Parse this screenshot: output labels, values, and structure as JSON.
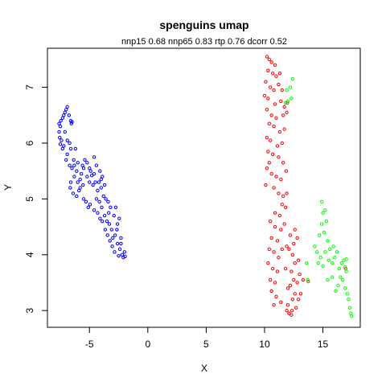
{
  "chart_data": {
    "type": "scatter",
    "title": "spenguins umap",
    "subtitle": "nnp15 0.68 nnp65 0.83 rtp 0.76 dcorr 0.52",
    "xlabel": "X",
    "ylabel": "Y",
    "xlim": [
      -8.6,
      18.2
    ],
    "ylim": [
      2.7,
      7.7
    ],
    "x_ticks": [
      -5,
      0,
      5,
      10,
      15
    ],
    "y_ticks": [
      3,
      4,
      5,
      6,
      7
    ],
    "grid": false,
    "legend": "none",
    "marker": "open-circle",
    "series": [
      {
        "color": "#0000FF",
        "points": [
          [
            -7.6,
            6.35
          ],
          [
            -7.5,
            6.3
          ],
          [
            -7.6,
            6.2
          ],
          [
            -7.55,
            6.1
          ],
          [
            -7.4,
            6.05
          ],
          [
            -7.5,
            5.98
          ],
          [
            -7.3,
            5.9
          ],
          [
            -7.2,
            5.95
          ],
          [
            -7.45,
            6.4
          ],
          [
            -7.3,
            6.45
          ],
          [
            -7.2,
            6.5
          ],
          [
            -7.1,
            6.55
          ],
          [
            -7.0,
            6.6
          ],
          [
            -6.9,
            6.65
          ],
          [
            -6.75,
            6.5
          ],
          [
            -6.6,
            6.4
          ],
          [
            -6.55,
            6.35
          ],
          [
            -6.5,
            6.38
          ],
          [
            -7.1,
            6.2
          ],
          [
            -6.9,
            6.05
          ],
          [
            -6.7,
            6.0
          ],
          [
            -6.6,
            5.9
          ],
          [
            -6.9,
            5.8
          ],
          [
            -7.0,
            5.7
          ],
          [
            -6.7,
            5.6
          ],
          [
            -6.5,
            5.55
          ],
          [
            -6.3,
            5.6
          ],
          [
            -6.1,
            5.5
          ],
          [
            -6.3,
            5.4
          ],
          [
            -6.0,
            5.3
          ],
          [
            -5.8,
            5.35
          ],
          [
            -5.7,
            5.45
          ],
          [
            -5.5,
            5.55
          ],
          [
            -5.6,
            5.6
          ],
          [
            -5.4,
            5.7
          ],
          [
            -5.2,
            5.65
          ],
          [
            -5.0,
            5.55
          ],
          [
            -4.9,
            5.5
          ],
          [
            -4.8,
            5.42
          ],
          [
            -4.6,
            5.45
          ],
          [
            -5.2,
            5.4
          ],
          [
            -5.0,
            5.3
          ],
          [
            -4.7,
            5.25
          ],
          [
            -4.5,
            5.3
          ],
          [
            -4.3,
            5.15
          ],
          [
            -4.0,
            5.2
          ],
          [
            -3.8,
            5.05
          ],
          [
            -3.6,
            5.0
          ],
          [
            -6.2,
            5.9
          ],
          [
            -6.35,
            5.7
          ],
          [
            -6.6,
            5.3
          ],
          [
            -6.65,
            5.2
          ],
          [
            -6.4,
            5.1
          ],
          [
            -6.1,
            5.05
          ],
          [
            -5.9,
            5.15
          ],
          [
            -5.5,
            5.0
          ],
          [
            -5.3,
            4.95
          ],
          [
            -5.1,
            4.85
          ],
          [
            -4.95,
            4.9
          ],
          [
            -4.6,
            4.8
          ],
          [
            -4.3,
            4.75
          ],
          [
            -4.1,
            4.65
          ],
          [
            -3.9,
            4.6
          ],
          [
            -3.7,
            4.7
          ],
          [
            -3.5,
            4.6
          ],
          [
            -3.3,
            4.55
          ],
          [
            -3.1,
            4.45
          ],
          [
            -3.0,
            4.3
          ],
          [
            -2.8,
            4.35
          ],
          [
            -2.6,
            4.2
          ],
          [
            -2.4,
            4.1
          ],
          [
            -2.3,
            4.2
          ],
          [
            -2.2,
            4.0
          ],
          [
            -2.1,
            3.95
          ],
          [
            -2.0,
            4.05
          ],
          [
            -1.95,
            3.97
          ],
          [
            -2.3,
            4.3
          ],
          [
            -2.6,
            4.55
          ],
          [
            -2.9,
            4.7
          ],
          [
            -3.2,
            4.85
          ],
          [
            -3.4,
            4.95
          ],
          [
            -3.7,
            5.25
          ],
          [
            -4.0,
            5.35
          ],
          [
            -4.2,
            5.3
          ],
          [
            -4.4,
            5.6
          ],
          [
            -4.6,
            5.75
          ],
          [
            -4.1,
            5.5
          ],
          [
            -3.9,
            5.4
          ],
          [
            -3.25,
            4.25
          ],
          [
            -3.05,
            4.15
          ],
          [
            -2.85,
            4.05
          ],
          [
            -2.65,
            4.45
          ],
          [
            -2.45,
            4.65
          ],
          [
            -2.75,
            4.85
          ],
          [
            -3.45,
            4.35
          ],
          [
            -3.65,
            4.45
          ],
          [
            -5.8,
            5.2
          ],
          [
            -6.0,
            5.65
          ],
          [
            -5.55,
            5.25
          ],
          [
            -4.15,
            4.95
          ],
          [
            -4.4,
            5.0
          ],
          [
            -3.95,
            4.85
          ],
          [
            -3.35,
            4.75
          ],
          [
            -2.5,
            3.98
          ]
        ]
      },
      {
        "color": "#FF0000",
        "points": [
          [
            10.2,
            7.55
          ],
          [
            10.4,
            7.5
          ],
          [
            10.6,
            7.45
          ],
          [
            10.9,
            7.4
          ],
          [
            10.3,
            7.3
          ],
          [
            10.7,
            7.25
          ],
          [
            11.0,
            7.2
          ],
          [
            11.3,
            7.25
          ],
          [
            10.1,
            7.1
          ],
          [
            10.5,
            7.0
          ],
          [
            10.8,
            6.95
          ],
          [
            11.2,
            7.05
          ],
          [
            11.5,
            6.95
          ],
          [
            10.0,
            6.85
          ],
          [
            10.3,
            6.8
          ],
          [
            10.9,
            6.7
          ],
          [
            11.4,
            6.75
          ],
          [
            11.7,
            6.65
          ],
          [
            10.2,
            6.6
          ],
          [
            10.6,
            6.5
          ],
          [
            11.0,
            6.45
          ],
          [
            11.6,
            6.5
          ],
          [
            11.9,
            6.55
          ],
          [
            10.4,
            6.35
          ],
          [
            10.8,
            6.3
          ],
          [
            11.3,
            6.2
          ],
          [
            11.7,
            6.25
          ],
          [
            10.2,
            6.1
          ],
          [
            10.5,
            6.05
          ],
          [
            11.1,
            5.95
          ],
          [
            11.5,
            6.0
          ],
          [
            10.3,
            5.85
          ],
          [
            10.7,
            5.8
          ],
          [
            11.2,
            5.75
          ],
          [
            11.6,
            5.65
          ],
          [
            10.2,
            5.55
          ],
          [
            10.6,
            5.45
          ],
          [
            11.0,
            5.4
          ],
          [
            11.4,
            5.35
          ],
          [
            10.8,
            5.2
          ],
          [
            11.2,
            5.1
          ],
          [
            11.6,
            5.05
          ],
          [
            11.9,
            5.1
          ],
          [
            11.5,
            4.9
          ],
          [
            11.8,
            4.85
          ],
          [
            10.9,
            4.75
          ],
          [
            11.3,
            4.7
          ],
          [
            10.5,
            4.6
          ],
          [
            10.9,
            4.5
          ],
          [
            11.4,
            4.45
          ],
          [
            10.6,
            4.3
          ],
          [
            11.1,
            4.25
          ],
          [
            10.4,
            4.1
          ],
          [
            10.8,
            4.05
          ],
          [
            11.2,
            3.95
          ],
          [
            10.3,
            3.85
          ],
          [
            10.7,
            3.75
          ],
          [
            11.1,
            3.7
          ],
          [
            10.5,
            3.55
          ],
          [
            10.9,
            3.5
          ],
          [
            10.6,
            3.35
          ],
          [
            11.0,
            3.25
          ],
          [
            11.4,
            3.15
          ],
          [
            10.8,
            3.1
          ],
          [
            11.9,
            3.0
          ],
          [
            12.1,
            2.95
          ],
          [
            12.3,
            2.92
          ],
          [
            12.0,
            3.1
          ],
          [
            12.4,
            3.2
          ],
          [
            12.6,
            3.3
          ],
          [
            12.9,
            3.2
          ],
          [
            13.1,
            3.3
          ],
          [
            12.2,
            3.45
          ],
          [
            12.5,
            3.55
          ],
          [
            12.8,
            3.5
          ],
          [
            13.0,
            3.65
          ],
          [
            12.3,
            3.7
          ],
          [
            12.6,
            3.85
          ],
          [
            12.9,
            3.9
          ],
          [
            12.4,
            4.0
          ],
          [
            12.1,
            4.1
          ],
          [
            12.5,
            4.2
          ],
          [
            12.8,
            4.3
          ],
          [
            12.2,
            4.35
          ],
          [
            12.6,
            4.45
          ],
          [
            13.3,
            3.55
          ],
          [
            11.8,
            3.75
          ],
          [
            12.0,
            3.4
          ],
          [
            11.7,
            4.55
          ],
          [
            11.9,
            4.15
          ],
          [
            12.7,
            3.05
          ],
          [
            10.1,
            5.25
          ],
          [
            11.85,
            5.5
          ],
          [
            10.4,
            5.65
          ],
          [
            11.5,
            4.1
          ],
          [
            12.35,
            3.0
          ]
        ]
      },
      {
        "color": "#00FF00",
        "points": [
          [
            11.9,
            6.95
          ],
          [
            12.2,
            7.0
          ],
          [
            12.4,
            7.15
          ],
          [
            12.0,
            6.75
          ],
          [
            12.3,
            6.8
          ],
          [
            11.8,
            6.72
          ],
          [
            13.6,
            3.85
          ],
          [
            13.7,
            3.55
          ],
          [
            14.3,
            4.15
          ],
          [
            14.5,
            4.05
          ],
          [
            14.7,
            4.35
          ],
          [
            14.9,
            4.55
          ],
          [
            15.0,
            4.75
          ],
          [
            15.2,
            4.8
          ],
          [
            15.3,
            4.6
          ],
          [
            15.1,
            4.4
          ],
          [
            15.4,
            4.25
          ],
          [
            15.6,
            4.1
          ],
          [
            15.2,
            4.05
          ],
          [
            14.8,
            3.95
          ],
          [
            14.6,
            3.85
          ],
          [
            15.0,
            3.8
          ],
          [
            15.5,
            3.9
          ],
          [
            15.8,
            3.85
          ],
          [
            16.0,
            3.95
          ],
          [
            16.2,
            4.05
          ],
          [
            15.9,
            4.15
          ],
          [
            16.4,
            3.75
          ],
          [
            16.6,
            3.85
          ],
          [
            16.8,
            3.9
          ],
          [
            17.0,
            3.92
          ],
          [
            16.5,
            3.6
          ],
          [
            16.7,
            3.55
          ],
          [
            16.9,
            3.4
          ],
          [
            17.1,
            3.3
          ],
          [
            17.2,
            3.2
          ],
          [
            17.3,
            3.05
          ],
          [
            17.4,
            2.95
          ],
          [
            17.45,
            2.9
          ],
          [
            16.3,
            3.45
          ],
          [
            16.1,
            3.35
          ],
          [
            15.8,
            3.6
          ],
          [
            15.4,
            3.55
          ],
          [
            17.0,
            3.7
          ],
          [
            16.9,
            3.78
          ],
          [
            14.9,
            4.95
          ]
        ]
      },
      {
        "color": "#808000",
        "points": [
          [
            11.95,
            6.72
          ],
          [
            13.75,
            3.52
          ],
          [
            16.95,
            3.75
          ]
        ]
      }
    ]
  }
}
